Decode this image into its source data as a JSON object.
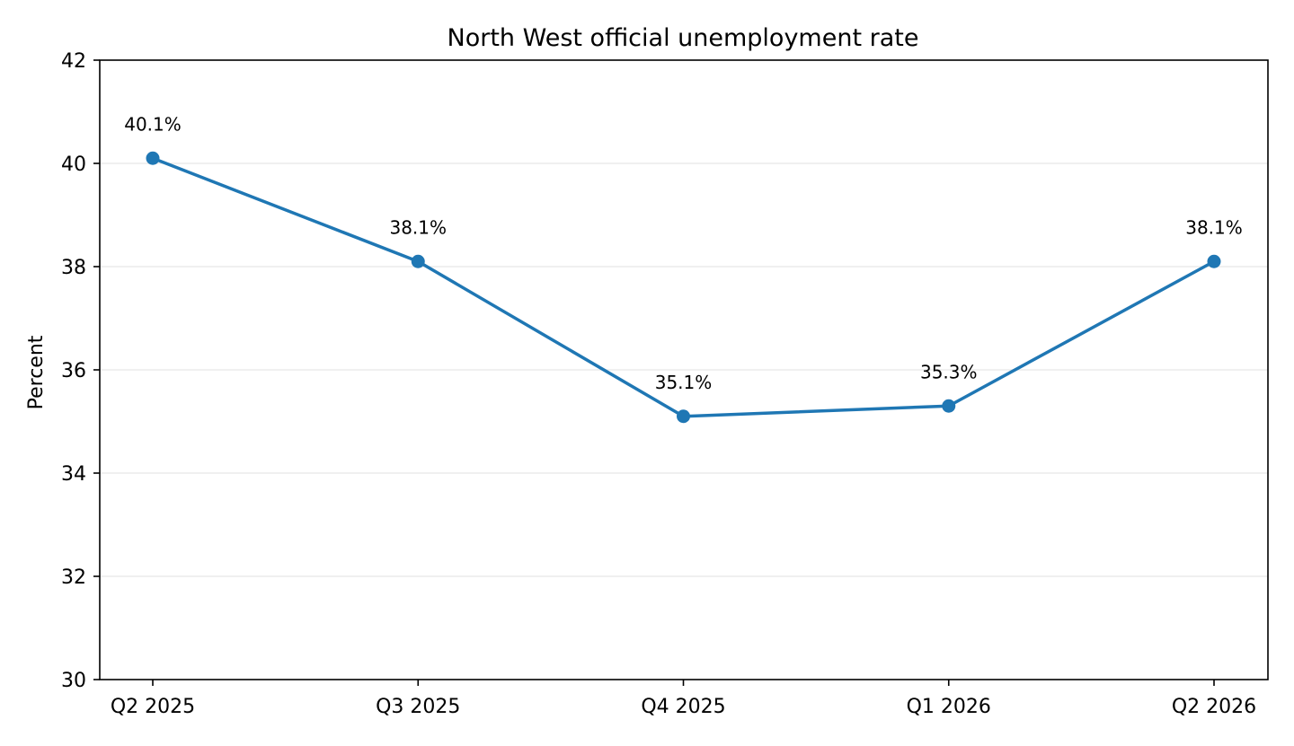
{
  "chart_data": {
    "type": "line",
    "title": "North West official unemployment rate",
    "xlabel": "",
    "ylabel": "Percent",
    "categories": [
      "Q2 2025",
      "Q3 2025",
      "Q4 2025",
      "Q1 2026",
      "Q2 2026"
    ],
    "series": [
      {
        "values": [
          40.1,
          38.1,
          35.1,
          35.3,
          38.1
        ],
        "data_labels": [
          "40.1%",
          "38.1%",
          "35.1%",
          "35.3%",
          "38.1%"
        ]
      }
    ],
    "ylim": [
      30,
      42
    ],
    "yticks": [
      30,
      32,
      34,
      36,
      38,
      40,
      42
    ],
    "grid": "horizontal",
    "colors": {
      "line": "#1f77b4",
      "grid": "#e6e6e6",
      "axis": "#000000"
    }
  }
}
